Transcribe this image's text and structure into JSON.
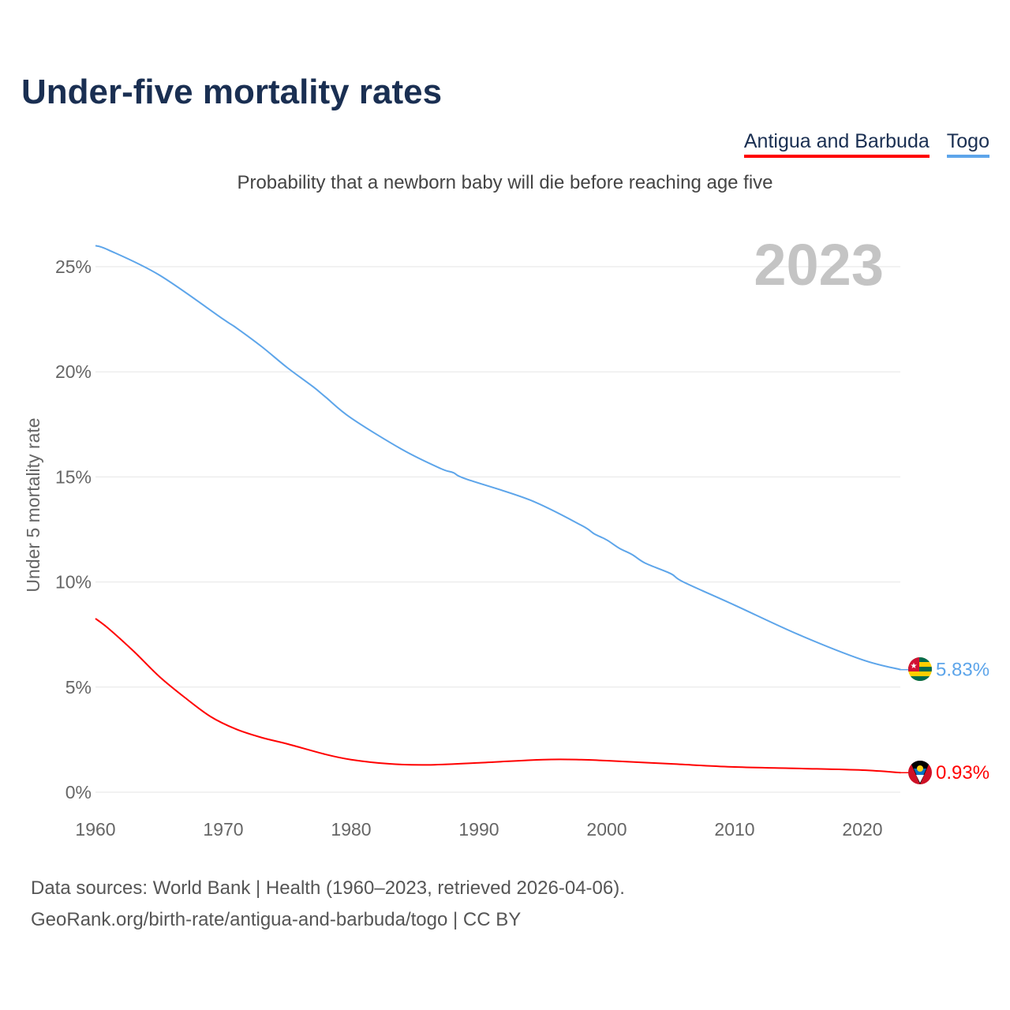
{
  "title": "Under-five mortality rates",
  "subtitle": "Probability that a newborn baby will die before reaching age five",
  "footer": {
    "line1": "Data sources: World Bank | Health (1960–2023, retrieved 2026-04-06).",
    "line2": "GeoRank.org/birth-rate/antigua-and-barbuda/togo | CC BY"
  },
  "chart_data": {
    "type": "line",
    "title": "Under-five mortality rates",
    "ylabel": "Under 5 mortality rate",
    "xlabel": "",
    "year_label": "2023",
    "xlim": [
      1960,
      2023
    ],
    "ylim": [
      0,
      27
    ],
    "x_ticks": [
      1960,
      1970,
      1980,
      1990,
      2000,
      2010,
      2020
    ],
    "y_ticks": [
      0,
      5,
      10,
      15,
      20,
      25
    ],
    "y_tick_labels": [
      "0%",
      "5%",
      "10%",
      "15%",
      "20%",
      "25%"
    ],
    "grid": true,
    "legend_position": "top-right",
    "series": [
      {
        "name": "Antigua and Barbuda",
        "color": "#ff0000",
        "end_label": "0.93%",
        "flag": "antigua-and-barbuda-flag",
        "points": [
          [
            1960,
            8.26
          ],
          [
            1961,
            7.8
          ],
          [
            1963,
            6.7
          ],
          [
            1965,
            5.5
          ],
          [
            1967,
            4.5
          ],
          [
            1969,
            3.6
          ],
          [
            1971,
            3.0
          ],
          [
            1973,
            2.6
          ],
          [
            1975,
            2.3
          ],
          [
            1978,
            1.8
          ],
          [
            1980,
            1.55
          ],
          [
            1983,
            1.35
          ],
          [
            1986,
            1.3
          ],
          [
            1990,
            1.4
          ],
          [
            1995,
            1.55
          ],
          [
            1998,
            1.55
          ],
          [
            2000,
            1.5
          ],
          [
            2005,
            1.35
          ],
          [
            2010,
            1.2
          ],
          [
            2015,
            1.13
          ],
          [
            2020,
            1.05
          ],
          [
            2023,
            0.93
          ]
        ]
      },
      {
        "name": "Togo",
        "color": "#5da5ea",
        "end_label": "5.83%",
        "flag": "togo-flag",
        "points": [
          [
            1960,
            26.0
          ],
          [
            1961,
            25.8
          ],
          [
            1965,
            24.6
          ],
          [
            1970,
            22.5
          ],
          [
            1971,
            22.1
          ],
          [
            1973,
            21.2
          ],
          [
            1975,
            20.2
          ],
          [
            1977,
            19.3
          ],
          [
            1978,
            18.8
          ],
          [
            1980,
            17.8
          ],
          [
            1984,
            16.3
          ],
          [
            1987,
            15.4
          ],
          [
            1988,
            15.2
          ],
          [
            1989,
            14.9
          ],
          [
            1994,
            13.9
          ],
          [
            1998,
            12.7
          ],
          [
            1999,
            12.3
          ],
          [
            2000,
            12.0
          ],
          [
            2001,
            11.6
          ],
          [
            2002,
            11.3
          ],
          [
            2003,
            10.9
          ],
          [
            2005,
            10.4
          ],
          [
            2006,
            10.0
          ],
          [
            2010,
            8.9
          ],
          [
            2015,
            7.5
          ],
          [
            2020,
            6.3
          ],
          [
            2023,
            5.83
          ]
        ]
      }
    ]
  }
}
